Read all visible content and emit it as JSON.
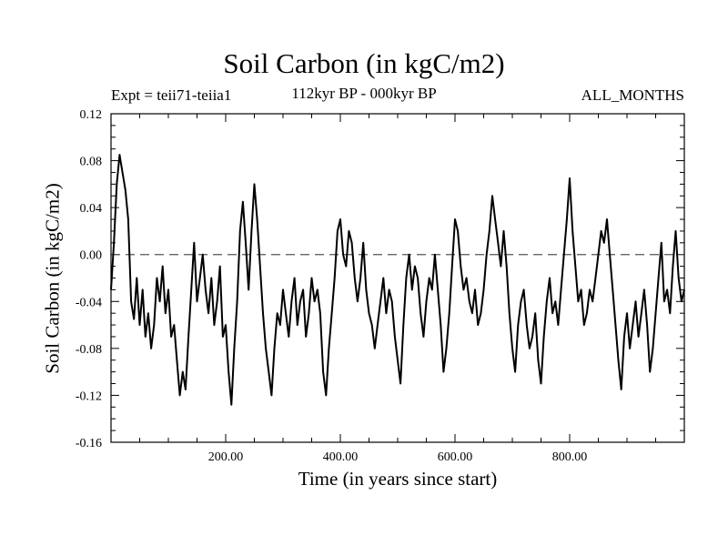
{
  "chart_data": {
    "type": "line",
    "title": "Soil Carbon (in kgC/m2)",
    "subtitle_left": "Expt = teii71-teiia1",
    "subtitle_center": "112kyr BP - 000kyr BP",
    "subtitle_right": "ALL_MONTHS",
    "xlabel": "Time (in years since start)",
    "ylabel": "Soil Carbon (in kgC/m2)",
    "xlim": [
      0,
      1000
    ],
    "ylim": [
      -0.16,
      0.12
    ],
    "xticks": [
      200,
      400,
      600,
      800
    ],
    "xtick_labels": [
      "200.00",
      "400.00",
      "600.00",
      "800.00"
    ],
    "yticks": [
      0.12,
      0.08,
      0.04,
      0.0,
      -0.04,
      -0.08,
      -0.12,
      -0.16
    ],
    "ytick_labels": [
      "0.12",
      "0.08",
      "0.04",
      "0.00",
      "-0.04",
      "-0.08",
      "-0.12",
      "-0.16"
    ],
    "reference_line": {
      "y": 0.0,
      "style": "dashed"
    },
    "line_color": "#000000",
    "series": [
      {
        "x": [
          0,
          5,
          10,
          15,
          20,
          25,
          30,
          35,
          40,
          45,
          50,
          55,
          60,
          65,
          70,
          75,
          80,
          85,
          90,
          95,
          100,
          105,
          110,
          115,
          120,
          125,
          130,
          135,
          140,
          145,
          150,
          155,
          160,
          165,
          170,
          175,
          180,
          185,
          190,
          195,
          200,
          205,
          210,
          215,
          220,
          225,
          230,
          235,
          240,
          245,
          250,
          255,
          260,
          265,
          270,
          275,
          280,
          285,
          290,
          295,
          300,
          305,
          310,
          315,
          320,
          325,
          330,
          335,
          340,
          345,
          350,
          355,
          360,
          365,
          370,
          375,
          380,
          385,
          390,
          395,
          400,
          405,
          410,
          415,
          420,
          425,
          430,
          435,
          440,
          445,
          450,
          455,
          460,
          465,
          470,
          475,
          480,
          485,
          490,
          495,
          500,
          505,
          510,
          515,
          520,
          525,
          530,
          535,
          540,
          545,
          550,
          555,
          560,
          565,
          570,
          575,
          580,
          585,
          590,
          595,
          600,
          605,
          610,
          615,
          620,
          625,
          630,
          635,
          640,
          645,
          650,
          655,
          660,
          665,
          670,
          675,
          680,
          685,
          690,
          695,
          700,
          705,
          710,
          715,
          720,
          725,
          730,
          735,
          740,
          745,
          750,
          755,
          760,
          765,
          770,
          775,
          780,
          785,
          790,
          795,
          800,
          805,
          810,
          815,
          820,
          825,
          830,
          835,
          840,
          845,
          850,
          855,
          860,
          865,
          870,
          875,
          880,
          885,
          890,
          895,
          900,
          905,
          910,
          915,
          920,
          925,
          930,
          935,
          940,
          945,
          950,
          955,
          960,
          965,
          970,
          975,
          980,
          985,
          990,
          995,
          1000
        ],
        "y": [
          -0.03,
          0.01,
          0.06,
          0.085,
          0.07,
          0.055,
          0.03,
          -0.04,
          -0.055,
          -0.02,
          -0.06,
          -0.03,
          -0.07,
          -0.05,
          -0.08,
          -0.06,
          -0.02,
          -0.04,
          -0.01,
          -0.05,
          -0.03,
          -0.07,
          -0.06,
          -0.09,
          -0.12,
          -0.1,
          -0.115,
          -0.07,
          -0.03,
          0.01,
          -0.04,
          -0.02,
          0.0,
          -0.03,
          -0.05,
          -0.02,
          -0.06,
          -0.04,
          -0.01,
          -0.07,
          -0.06,
          -0.1,
          -0.128,
          -0.08,
          -0.04,
          0.02,
          0.045,
          0.01,
          -0.03,
          0.02,
          0.06,
          0.03,
          -0.01,
          -0.05,
          -0.08,
          -0.1,
          -0.12,
          -0.08,
          -0.05,
          -0.06,
          -0.03,
          -0.05,
          -0.07,
          -0.04,
          -0.02,
          -0.06,
          -0.04,
          -0.03,
          -0.07,
          -0.05,
          -0.02,
          -0.04,
          -0.03,
          -0.05,
          -0.1,
          -0.12,
          -0.08,
          -0.05,
          -0.02,
          0.02,
          0.03,
          0.0,
          -0.01,
          0.02,
          0.01,
          -0.02,
          -0.04,
          -0.02,
          0.01,
          -0.03,
          -0.05,
          -0.06,
          -0.08,
          -0.06,
          -0.04,
          -0.02,
          -0.05,
          -0.03,
          -0.04,
          -0.07,
          -0.09,
          -0.11,
          -0.06,
          -0.02,
          0.0,
          -0.03,
          -0.01,
          -0.02,
          -0.05,
          -0.07,
          -0.04,
          -0.02,
          -0.03,
          0.0,
          -0.03,
          -0.06,
          -0.1,
          -0.08,
          -0.05,
          -0.01,
          0.03,
          0.02,
          -0.01,
          -0.03,
          -0.02,
          -0.04,
          -0.05,
          -0.03,
          -0.06,
          -0.05,
          -0.03,
          0.0,
          0.02,
          0.05,
          0.03,
          0.01,
          -0.01,
          0.02,
          -0.01,
          -0.05,
          -0.08,
          -0.1,
          -0.06,
          -0.04,
          -0.03,
          -0.06,
          -0.08,
          -0.07,
          -0.05,
          -0.09,
          -0.11,
          -0.07,
          -0.04,
          -0.02,
          -0.05,
          -0.04,
          -0.06,
          -0.03,
          0.0,
          0.03,
          0.065,
          0.02,
          -0.01,
          -0.04,
          -0.03,
          -0.06,
          -0.05,
          -0.03,
          -0.04,
          -0.02,
          0.0,
          0.02,
          0.01,
          0.03,
          0.0,
          -0.03,
          -0.06,
          -0.09,
          -0.115,
          -0.07,
          -0.05,
          -0.08,
          -0.06,
          -0.04,
          -0.07,
          -0.05,
          -0.03,
          -0.06,
          -0.1,
          -0.08,
          -0.05,
          -0.02,
          0.01,
          -0.04,
          -0.03,
          -0.05,
          -0.01,
          0.02,
          -0.02,
          -0.04,
          -0.03
        ],
        "note_type": "line"
      }
    ]
  }
}
